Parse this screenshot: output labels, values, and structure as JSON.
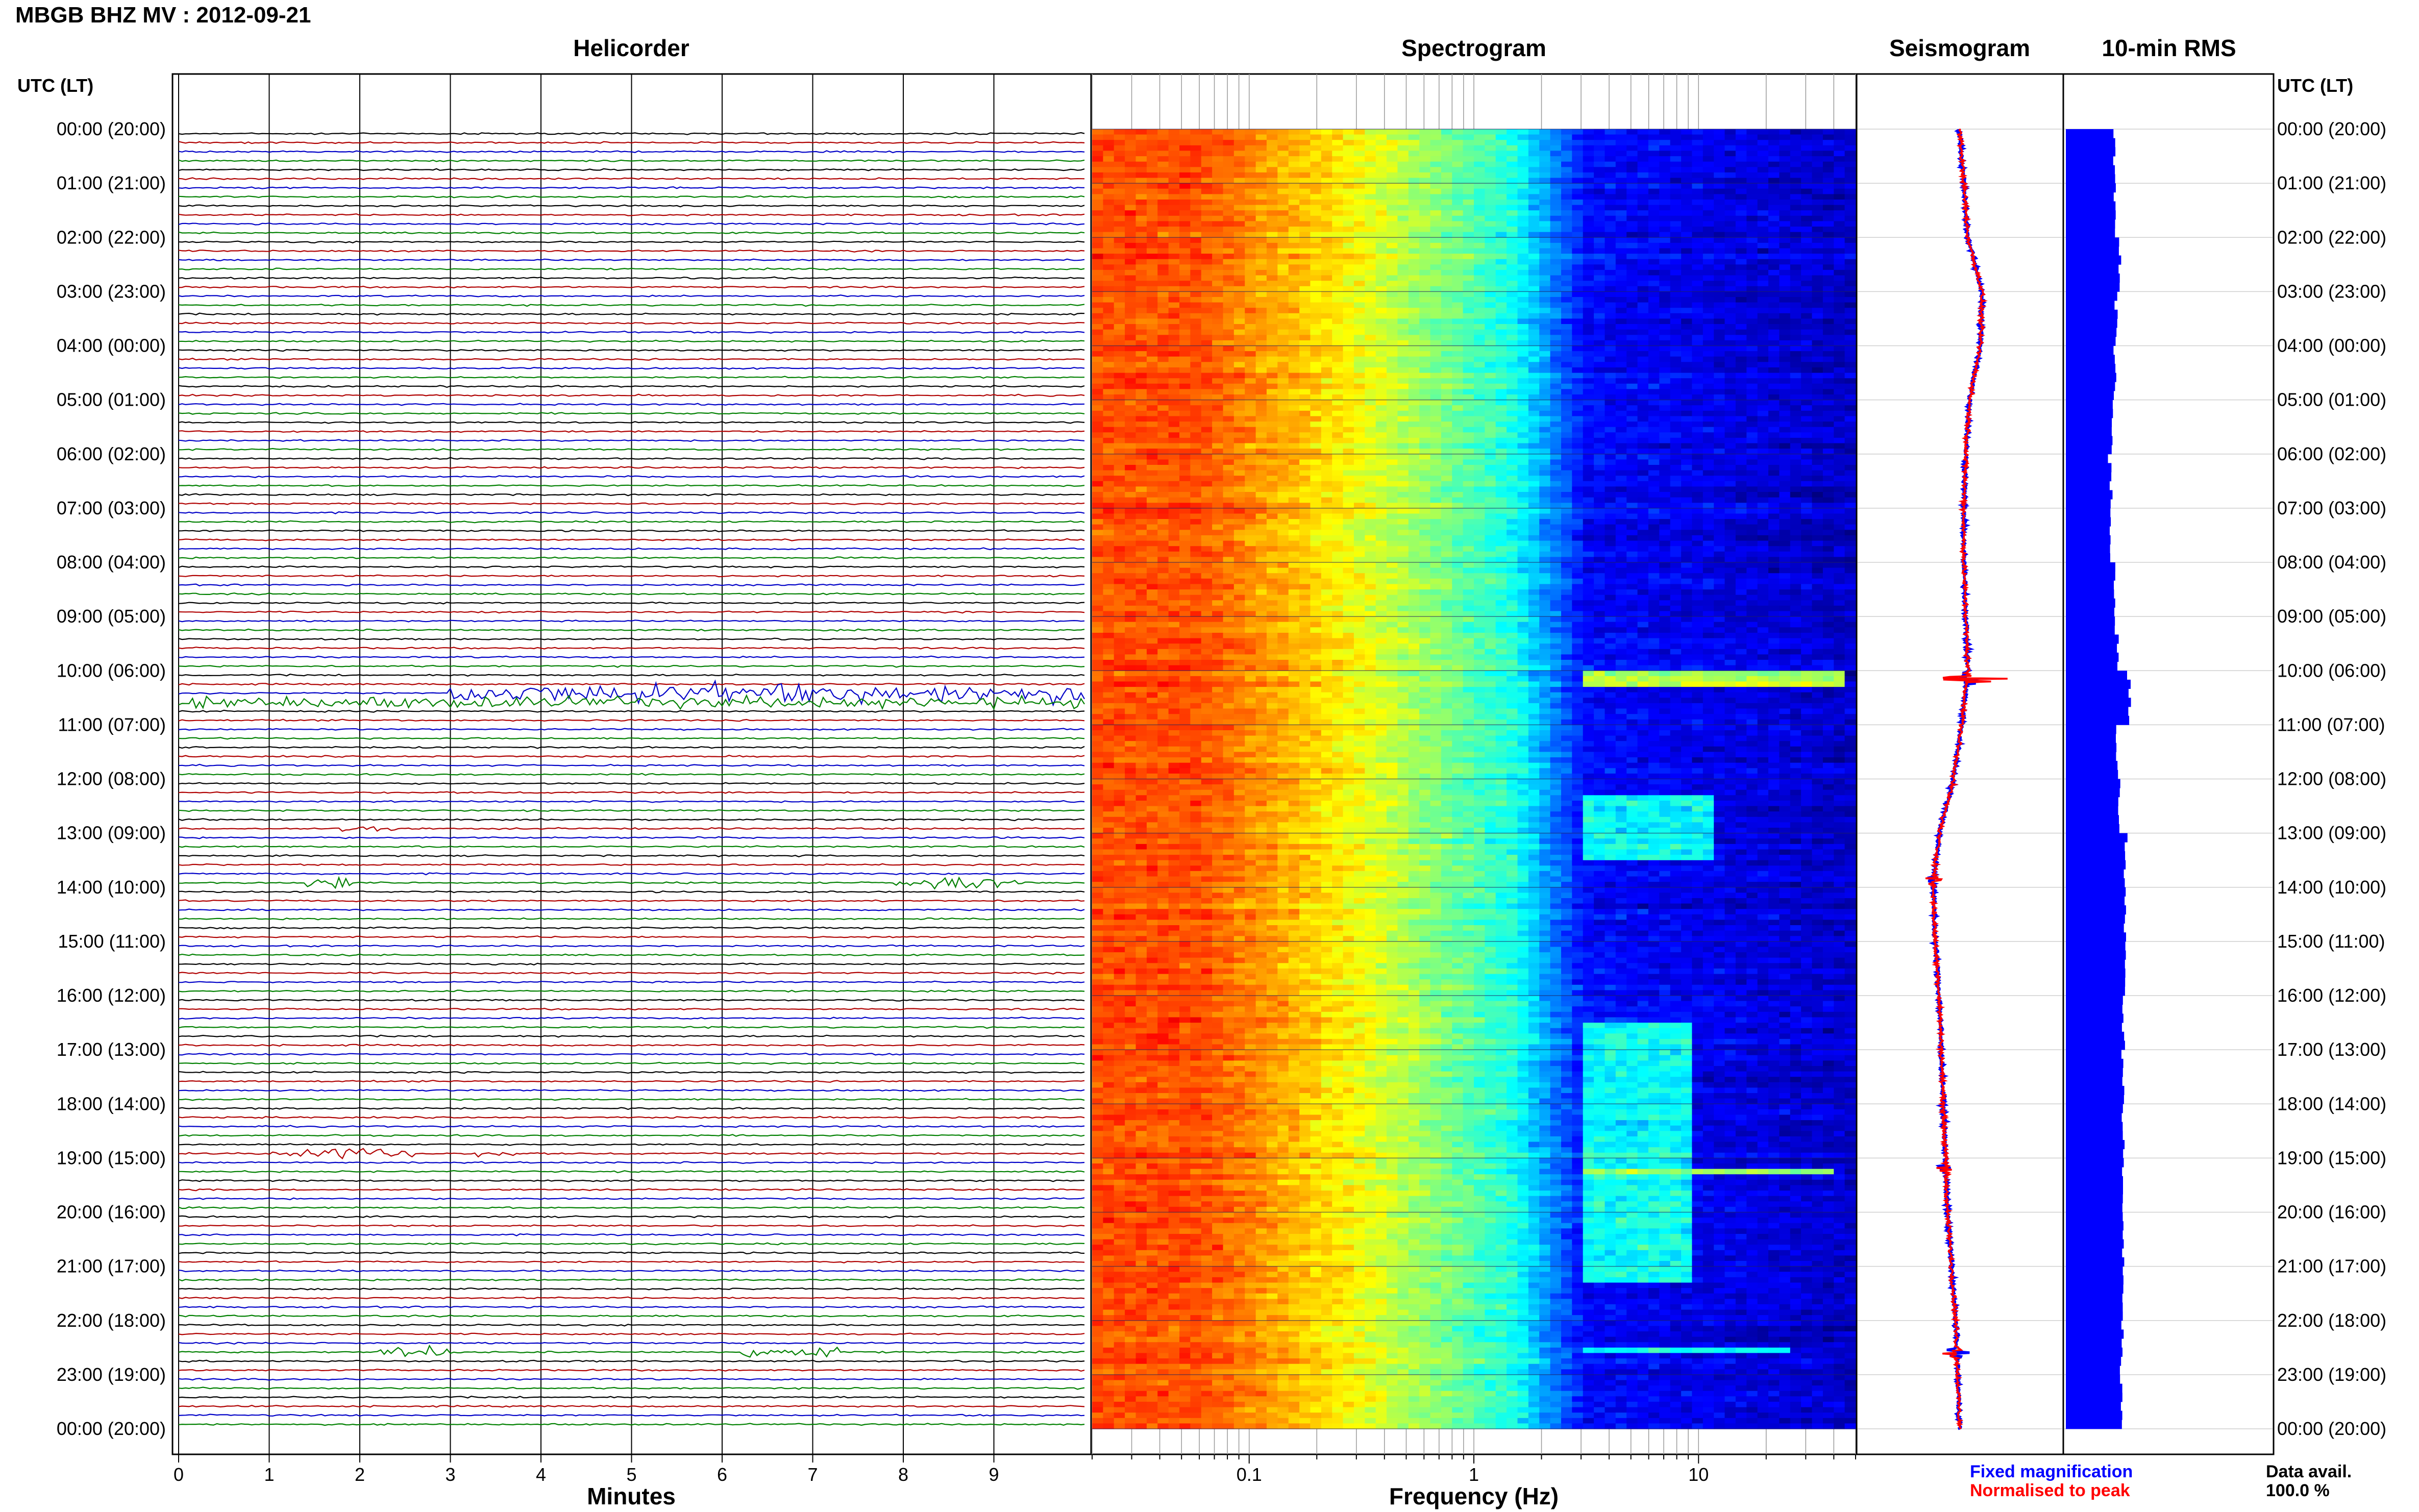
{
  "header": {
    "station_title": "MBGB BHZ MV : 2012-09-21",
    "panel_helicorder": "Helicorder",
    "panel_spectrogram": "Spectrogram",
    "panel_seismogram": "Seismogram",
    "panel_rms": "10-min RMS",
    "utc_label_left": "UTC (LT)",
    "utc_label_right": "UTC (LT)"
  },
  "footer": {
    "helicorder_xlabel": "Minutes",
    "spectrogram_xlabel": "Frequency (Hz)",
    "legend_fixed": "Fixed magnification",
    "legend_normalised": "Normalised to peak",
    "data_avail_label": "Data avail.",
    "data_avail_value": "100.0 %"
  },
  "colors": {
    "helicorder_traces": [
      "#000000",
      "#b00000",
      "#0000c8",
      "#008000"
    ],
    "fixed_magnification": "#0000ff",
    "normalised_to_peak": "#ff0000",
    "rms_bar": "#0000ff",
    "spectrogram_low": "#00008c",
    "spectrogram_high": "#ffff00"
  },
  "time_labels": [
    "00:00 (20:00)",
    "01:00 (21:00)",
    "02:00 (22:00)",
    "03:00 (23:00)",
    "04:00 (00:00)",
    "05:00 (01:00)",
    "06:00 (02:00)",
    "07:00 (03:00)",
    "08:00 (04:00)",
    "09:00 (05:00)",
    "10:00 (06:00)",
    "11:00 (07:00)",
    "12:00 (08:00)",
    "13:00 (09:00)",
    "14:00 (10:00)",
    "15:00 (11:00)",
    "16:00 (12:00)",
    "17:00 (13:00)",
    "18:00 (14:00)",
    "19:00 (15:00)",
    "20:00 (16:00)",
    "21:00 (17:00)",
    "22:00 (18:00)",
    "23:00 (19:00)",
    "00:00 (20:00)"
  ],
  "chart_data": [
    {
      "type": "line",
      "title": "Helicorder",
      "xlabel": "Minutes",
      "x_ticks": [
        0,
        1,
        2,
        3,
        4,
        5,
        6,
        7,
        8,
        9
      ],
      "xlim": [
        0,
        10
      ],
      "traces_per_hour": 6,
      "trace_minutes": 10,
      "events": [
        {
          "hour": 10,
          "trace": 2,
          "from_min": 3.0,
          "to_min": 10.0,
          "amplitude": "high"
        },
        {
          "hour": 10,
          "trace": 3,
          "from_min": 0.0,
          "to_min": 10.0,
          "amplitude": "medium"
        },
        {
          "hour": 12,
          "trace": 5,
          "from_min": 1.8,
          "to_min": 2.4,
          "amplitude": "low"
        },
        {
          "hour": 13,
          "trace": 5,
          "from_min": 1.4,
          "to_min": 1.9,
          "amplitude": "medium"
        },
        {
          "hour": 13,
          "trace": 5,
          "from_min": 7.9,
          "to_min": 9.3,
          "amplitude": "medium"
        },
        {
          "hour": 18,
          "trace": 5,
          "from_min": 1.0,
          "to_min": 2.6,
          "amplitude": "medium"
        },
        {
          "hour": 18,
          "trace": 5,
          "from_min": 3.3,
          "to_min": 3.8,
          "amplitude": "low"
        },
        {
          "hour": 22,
          "trace": 3,
          "from_min": 2.2,
          "to_min": 3.0,
          "amplitude": "medium"
        },
        {
          "hour": 22,
          "trace": 3,
          "from_min": 6.2,
          "to_min": 7.3,
          "amplitude": "medium"
        }
      ]
    },
    {
      "type": "heatmap",
      "title": "Spectrogram",
      "xlabel": "Frequency (Hz)",
      "x_scale": "log",
      "xlim": [
        0.02,
        50
      ],
      "x_tick_labels": [
        "0.1",
        "1",
        "10"
      ],
      "x_tick_values": [
        0.1,
        1,
        10
      ],
      "colormap": "jet",
      "bands": [
        {
          "from_hour": 10.0,
          "to_hour": 10.3,
          "from_hz": 3,
          "to_hz": 45,
          "level": "high"
        },
        {
          "from_hour": 12.3,
          "to_hour": 13.5,
          "from_hz": 3,
          "to_hz": 12,
          "level": "medium"
        },
        {
          "from_hour": 16.5,
          "to_hour": 21.3,
          "from_hz": 3,
          "to_hz": 9,
          "level": "medium"
        },
        {
          "from_hour": 19.2,
          "to_hour": 19.3,
          "from_hz": 3,
          "to_hz": 40,
          "level": "high"
        },
        {
          "from_hour": 22.5,
          "to_hour": 22.6,
          "from_hz": 3,
          "to_hz": 25,
          "level": "medium"
        }
      ]
    },
    {
      "type": "line",
      "title": "Seismogram",
      "series": [
        {
          "name": "Fixed magnification",
          "color": "#0000ff"
        },
        {
          "name": "Normalised to peak",
          "color": "#ff0000"
        }
      ],
      "baseline_hours": [
        0,
        1,
        2,
        3,
        4,
        5,
        6,
        7,
        8,
        9,
        10,
        11,
        12,
        13,
        14,
        15,
        16,
        17,
        18,
        19,
        20,
        21,
        22,
        23,
        24
      ],
      "baseline_offset": [
        0.0,
        0.1,
        0.2,
        0.55,
        0.5,
        0.25,
        0.15,
        0.1,
        0.1,
        0.15,
        0.2,
        0.05,
        -0.15,
        -0.5,
        -0.65,
        -0.6,
        -0.5,
        -0.45,
        -0.4,
        -0.35,
        -0.3,
        -0.2,
        -0.1,
        -0.05,
        0.0
      ],
      "bursts": [
        {
          "hour": 10.15,
          "amplitude": 1.6
        },
        {
          "hour": 13.9,
          "amplitude": 0.45
        },
        {
          "hour": 19.2,
          "amplitude": 0.45
        },
        {
          "hour": 22.6,
          "amplitude": 0.5
        }
      ]
    },
    {
      "type": "bar",
      "title": "10-min RMS",
      "orientation": "horizontal",
      "interval_minutes": 10,
      "legend": [
        "Fixed magnification",
        "Normalised to peak"
      ],
      "data_availability": "100.0 %",
      "hourly_mean_level": [
        0.24,
        0.24,
        0.26,
        0.25,
        0.24,
        0.23,
        0.22,
        0.22,
        0.24,
        0.25,
        0.31,
        0.25,
        0.26,
        0.29,
        0.29,
        0.29,
        0.28,
        0.28,
        0.28,
        0.28,
        0.28,
        0.28,
        0.27,
        0.27
      ]
    }
  ]
}
